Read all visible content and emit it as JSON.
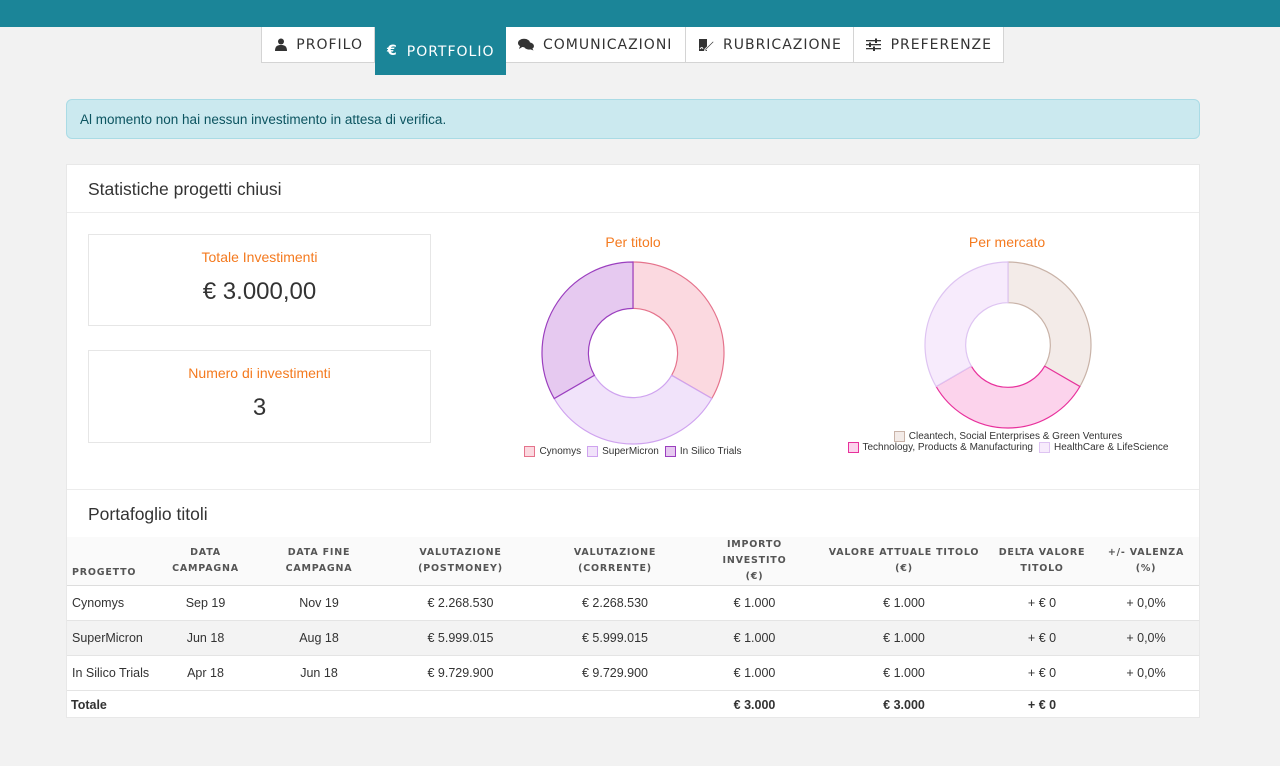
{
  "nav": {
    "tabs": [
      {
        "label": "PROFILO",
        "icon": "user-icon"
      },
      {
        "label": "PORTFOLIO",
        "icon": "euro-icon",
        "active": true
      },
      {
        "label": "COMUNICAZIONI",
        "icon": "chat-icon"
      },
      {
        "label": "RUBRICAZIONE",
        "icon": "signature-icon"
      },
      {
        "label": "PREFERENZE",
        "icon": "sliders-icon"
      }
    ]
  },
  "alert": "Al momento non hai nessun investimento in attesa di verifica.",
  "stats": {
    "title": "Statistiche progetti chiusi",
    "total_label": "Totale Investimenti",
    "total_value": "€ 3.000,00",
    "count_label": "Numero di investimenti",
    "count_value": "3"
  },
  "colors": {
    "accent": "#1b8598",
    "orange": "#f47a1f",
    "alert_bg": "#cbe9ef"
  },
  "chart_data": [
    {
      "type": "pie",
      "title": "Per titolo",
      "categories": [
        "Cynomys",
        "SuperMicron",
        "In Silico Trials"
      ],
      "values": [
        1000,
        1000,
        1000
      ],
      "fills": [
        "#fbd9e0",
        "#f1e3fa",
        "#e6c9f0"
      ],
      "strokes": [
        "#e5738c",
        "#cfa3ef",
        "#9b3fbf"
      ]
    },
    {
      "type": "pie",
      "title": "Per mercato",
      "categories": [
        "Cleantech, Social Enterprises & Green Ventures",
        "Technology, Products & Manufacturing",
        "HealthCare & LifeScience"
      ],
      "values": [
        1000,
        1000,
        1000
      ],
      "fills": [
        "#f3ebe8",
        "#fcd3ec",
        "#f7ebfc"
      ],
      "strokes": [
        "#c9b3a8",
        "#e8319c",
        "#dec4f2"
      ]
    }
  ],
  "portfolio": {
    "title": "Portafoglio titoli",
    "headers": [
      [
        "PROGETTO"
      ],
      [
        "DATA",
        "CAMPAGNA"
      ],
      [
        "DATA FINE",
        "CAMPAGNA"
      ],
      [
        "VALUTAZIONE",
        "(POSTMONEY)"
      ],
      [
        "VALUTAZIONE",
        "(CORRENTE)"
      ],
      [
        "IMPORTO INVESTITO",
        "(€)"
      ],
      [
        "VALORE ATTUALE TITOLO",
        "(€)"
      ],
      [
        "DELTA VALORE",
        "TITOLO"
      ],
      [
        "+/- VALENZA",
        "(%)"
      ]
    ],
    "rows": [
      [
        "Cynomys",
        "Sep 19",
        "Nov 19",
        "€ 2.268.530",
        "€ 2.268.530",
        "€ 1.000",
        "€ 1.000",
        "+ € 0",
        "+ 0,0%"
      ],
      [
        "SuperMicron",
        "Jun 18",
        "Aug 18",
        "€ 5.999.015",
        "€ 5.999.015",
        "€ 1.000",
        "€ 1.000",
        "+ € 0",
        "+ 0,0%"
      ],
      [
        "In Silico Trials",
        "Apr 18",
        "Jun 18",
        "€ 9.729.900",
        "€ 9.729.900",
        "€ 1.000",
        "€ 1.000",
        "+ € 0",
        "+ 0,0%"
      ]
    ],
    "total": [
      "Totale",
      "",
      "",
      "",
      "",
      "€ 3.000",
      "€ 3.000",
      "+ € 0",
      ""
    ]
  }
}
